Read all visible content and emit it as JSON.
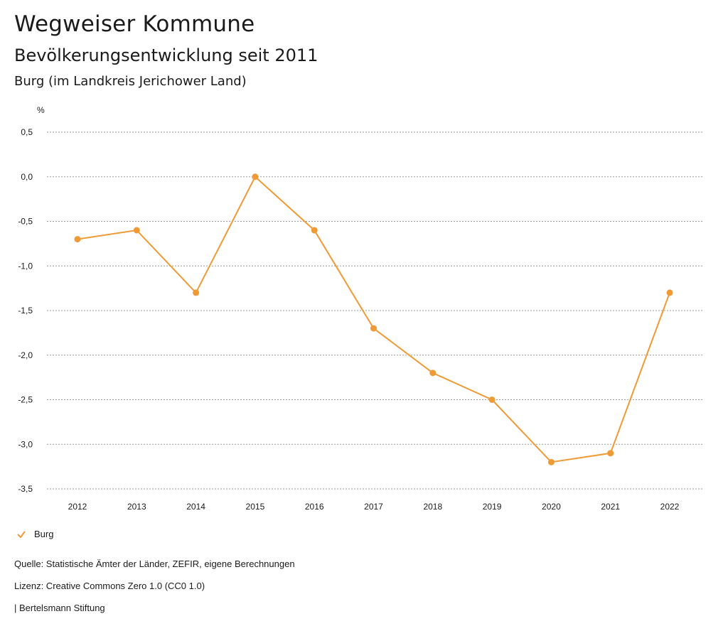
{
  "header": {
    "title": "Wegweiser Kommune",
    "subtitle": "Bevölkerungsentwicklung seit 2011",
    "region": "Burg (im Landkreis Jerichower Land)"
  },
  "chart_data": {
    "type": "line",
    "ylabel": "%",
    "categories": [
      "2012",
      "2013",
      "2014",
      "2015",
      "2016",
      "2017",
      "2018",
      "2019",
      "2020",
      "2021",
      "2022"
    ],
    "series": [
      {
        "name": "Burg",
        "color": "#ef9a35",
        "values": [
          -0.7,
          -0.6,
          -1.3,
          0.0,
          -0.6,
          -1.7,
          -2.2,
          -2.5,
          -3.2,
          -3.1,
          -1.3
        ]
      }
    ],
    "ylim": [
      -3.5,
      0.5
    ],
    "yticks": [
      0.5,
      0.0,
      -0.5,
      -1.0,
      -1.5,
      -2.0,
      -2.5,
      -3.0,
      -3.5
    ],
    "ytick_labels": [
      "0,5",
      "0,0",
      "-0,5",
      "-1,0",
      "-1,5",
      "-2,0",
      "-2,5",
      "-3,0",
      "-3,5"
    ],
    "grid": true,
    "legend": "bottom-left"
  },
  "footer": {
    "source": "Quelle: Statistische Ämter der Länder, ZEFIR, eigene Berechnungen",
    "license": "Lizenz: Creative Commons Zero 1.0 (CC0 1.0)",
    "publisher": "| Bertelsmann Stiftung"
  }
}
